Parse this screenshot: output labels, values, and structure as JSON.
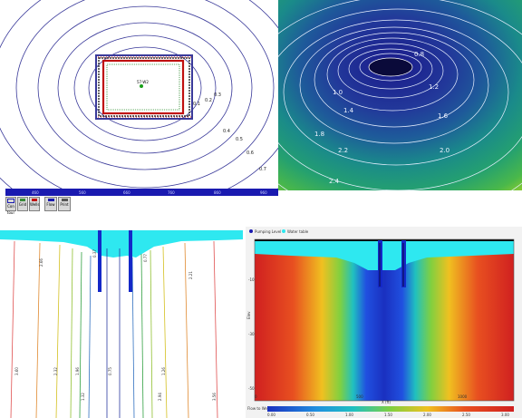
{
  "colors": {
    "contour_blue": "#3a3a9a",
    "axis_bar": "#1a1ab0",
    "water": "#2ee8f0",
    "well": "#1428c8"
  },
  "top_left": {
    "well_label": "57-W2",
    "axis_ticks": [
      "460",
      "560",
      "660",
      "760",
      "860",
      "960"
    ],
    "contour_labels": [
      "0.1",
      "0.2",
      "0.3",
      "0.4",
      "0.5",
      "0.6",
      "0.7"
    ],
    "toolbar": [
      {
        "icon": "map-icon",
        "label": "Con tour"
      },
      {
        "icon": "chart-icon",
        "label": "Grid"
      },
      {
        "icon": "layers-icon",
        "label": "Wells"
      },
      {
        "icon": "legend-icon",
        "label": "Flow"
      },
      {
        "icon": "print-icon",
        "label": "Print"
      }
    ]
  },
  "top_right": {
    "contour_labels": [
      "0.8",
      "1.0",
      "1.2",
      "1.4",
      "1.6",
      "1.8",
      "2.0",
      "2.2",
      "2.4"
    ]
  },
  "bottom_left": {
    "contour_labels": [
      "3.60",
      "2.66",
      "2.32",
      "1.96",
      "1.32",
      "0.75",
      "0.37",
      "0.77",
      "1.26",
      "2.21",
      "2.94",
      "3.56"
    ]
  },
  "bottom_right": {
    "legend": [
      {
        "label": "Pumping Level",
        "color": "#1a1ab0"
      },
      {
        "label": "Water table",
        "color": "#2ee8f0"
      }
    ],
    "y_ticks": [
      "-10",
      "-30",
      "-50"
    ],
    "y_label": "Elev",
    "x_ticks": [
      "0",
      "500",
      "1000"
    ],
    "x_label": "X (ft)",
    "colorbar_title": "Flow to Well",
    "colorbar_ticks": [
      "0.00",
      "0.50",
      "1.00",
      "1.50",
      "2.00",
      "2.50",
      "3.00"
    ]
  }
}
